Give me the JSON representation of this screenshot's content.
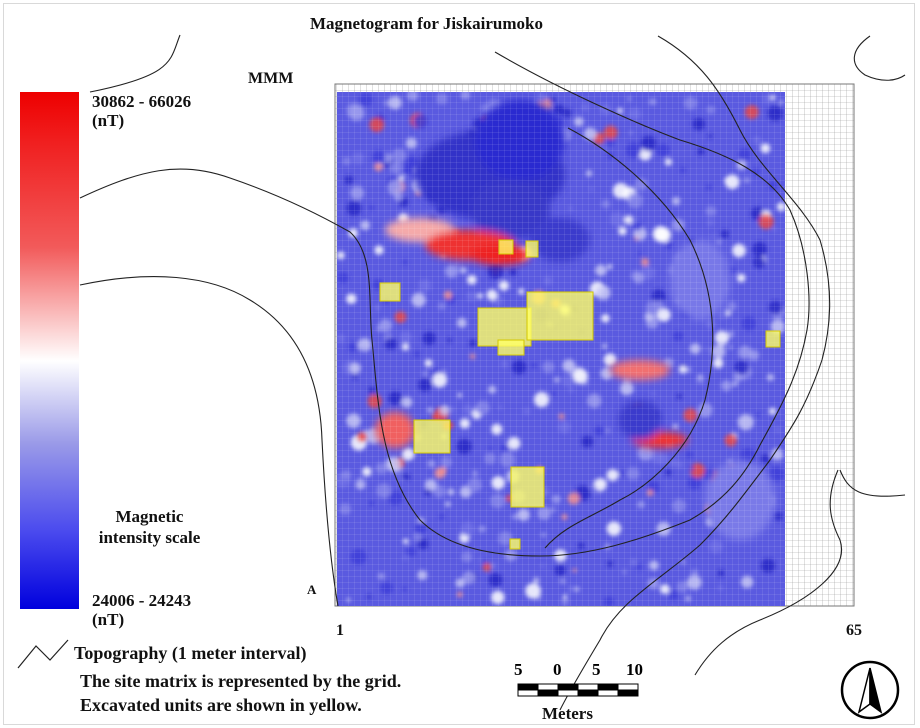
{
  "title": "Magnetogram for Jiskairumoko",
  "grid_labels": {
    "corner_top": "MMM",
    "corner_bottom": "A",
    "axis_start": "1",
    "axis_end": "65"
  },
  "legend": {
    "high": "30862 - 66026",
    "high_unit": "(nT)",
    "scale_title_1": "Magnetic",
    "scale_title_2": "intensity scale",
    "low": "24006 - 24243",
    "low_unit": "(nT)",
    "high_color": "#ee0000",
    "mid_color": "#ffffff",
    "low_color": "#0000dd"
  },
  "notes": {
    "topography": "Topography (1 meter interval)",
    "matrix": "The site matrix is represented by the grid.",
    "excavated": "Excavated units are shown in yellow.",
    "excavated_color": "#ffff66"
  },
  "scale_bar": {
    "ticks": [
      "5",
      "0",
      "5",
      "10"
    ],
    "unit": "Meters"
  },
  "north_arrow": "north-arrow-icon"
}
